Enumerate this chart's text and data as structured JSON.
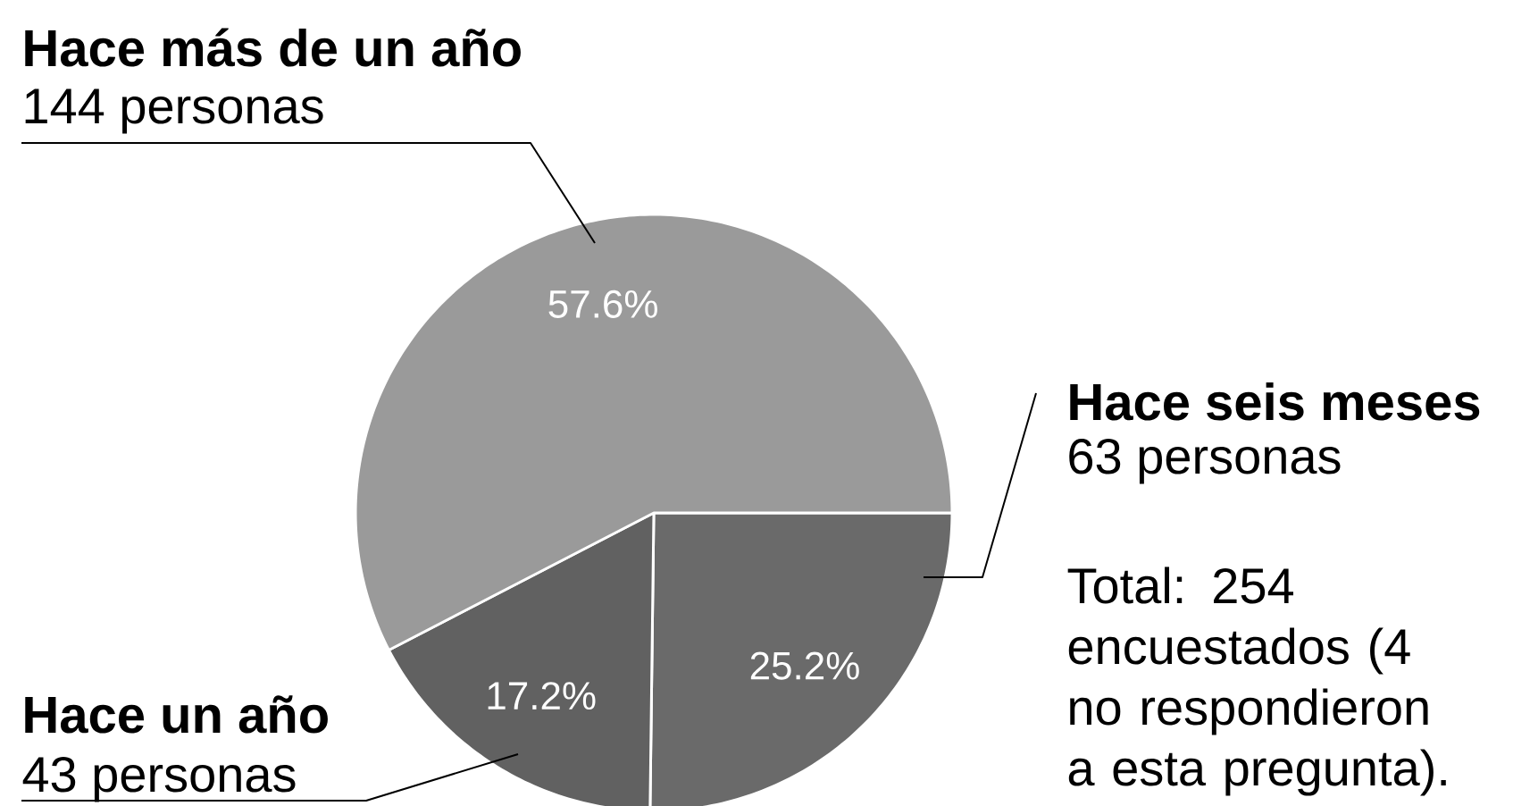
{
  "chart_data": {
    "type": "pie",
    "categories": [
      "Hace seis meses",
      "Hace un año",
      "Hace más de un año"
    ],
    "values": [
      25.2,
      17.2,
      57.6
    ],
    "colors": [
      "#6a6a6a",
      "#616161",
      "#9a9a9a"
    ],
    "value_labels": [
      "25.2%",
      "17.2%",
      "57.6%"
    ],
    "annotations": [
      "63 personas",
      "43 personas",
      "144 personas",
      "Total: 254 encuestados (4 no respondieron a esta pregunta)."
    ]
  }
}
